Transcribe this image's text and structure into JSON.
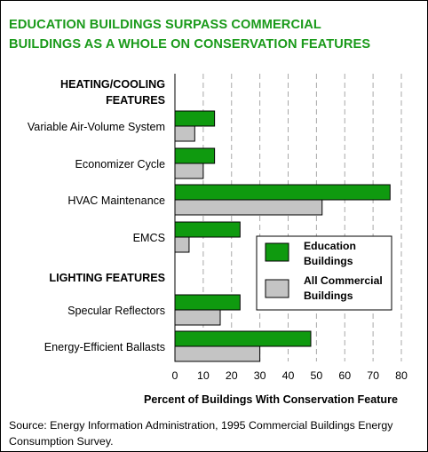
{
  "title": [
    "EDUCATION BUILDINGS SURPASS COMMERCIAL",
    "BUILDINGS AS A WHOLE ON CONSERVATION FEATURES"
  ],
  "source": "Source:  Energy Information Administration, 1995 Commercial Buildings Energy Consumption Survey.",
  "colors": {
    "education": "#0f9a0f",
    "commercial": "#c4c4c4",
    "title": "#1a9a1a",
    "grid": "#a8a8a8"
  },
  "chart_data": {
    "type": "bar",
    "orientation": "horizontal",
    "groups": [
      {
        "heading": [
          "HEATING/COOLING",
          "FEATURES"
        ],
        "categories": [
          "Variable Air-Volume System",
          "Economizer Cycle",
          "HVAC Maintenance",
          "EMCS"
        ]
      },
      {
        "heading": [
          "LIGHTING FEATURES"
        ],
        "categories": [
          "Specular Reflectors",
          "Energy-Efficient Ballasts"
        ]
      }
    ],
    "categories": [
      "Variable Air-Volume System",
      "Economizer Cycle",
      "HVAC Maintenance",
      "EMCS",
      "Specular Reflectors",
      "Energy-Efficient Ballasts"
    ],
    "series": [
      {
        "name": [
          "Education",
          "Buildings"
        ],
        "values": [
          14,
          14,
          76,
          23,
          23,
          48
        ]
      },
      {
        "name": [
          "All Commercial",
          "Buildings"
        ],
        "values": [
          7,
          10,
          52,
          5,
          16,
          30
        ]
      }
    ],
    "xlabel": "Percent of Buildings With Conservation Feature",
    "xlim": [
      0,
      80
    ],
    "xticks": [
      0,
      10,
      20,
      30,
      40,
      50,
      60,
      70,
      80
    ],
    "grid": "vertical dashed",
    "legend_position": "right-middle"
  }
}
